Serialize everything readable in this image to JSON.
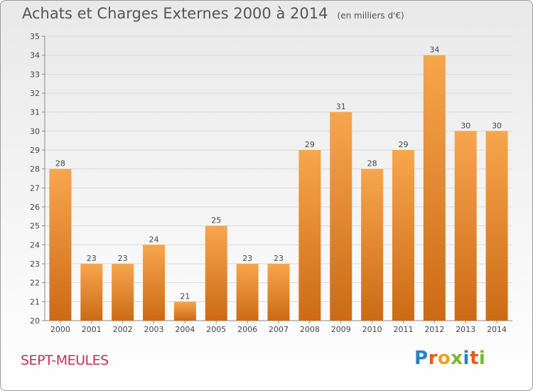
{
  "title": "Achats et Charges Externes 2000 à 2014",
  "subtitle": "(en milliers d'€)",
  "commune": "SEPT-MEULES",
  "logo_text": "Proxiti",
  "colors": {
    "bar_light": "#f7a64e",
    "bar_dark": "#cc6a16",
    "axis": "#888888",
    "grid": "#d8d8d8",
    "commune": "#c0305a"
  },
  "chart_data": {
    "type": "bar",
    "categories": [
      "2000",
      "2001",
      "2002",
      "2003",
      "2004",
      "2005",
      "2006",
      "2007",
      "2008",
      "2009",
      "2010",
      "2011",
      "2012",
      "2013",
      "2014"
    ],
    "values": [
      28,
      23,
      23,
      24,
      21,
      25,
      23,
      23,
      29,
      31,
      28,
      29,
      34,
      30,
      30
    ],
    "ylim": [
      20,
      35
    ],
    "yticks": [
      20,
      21,
      22,
      23,
      24,
      25,
      26,
      27,
      28,
      29,
      30,
      31,
      32,
      33,
      34,
      35
    ],
    "grid": true,
    "data_labels": true
  }
}
